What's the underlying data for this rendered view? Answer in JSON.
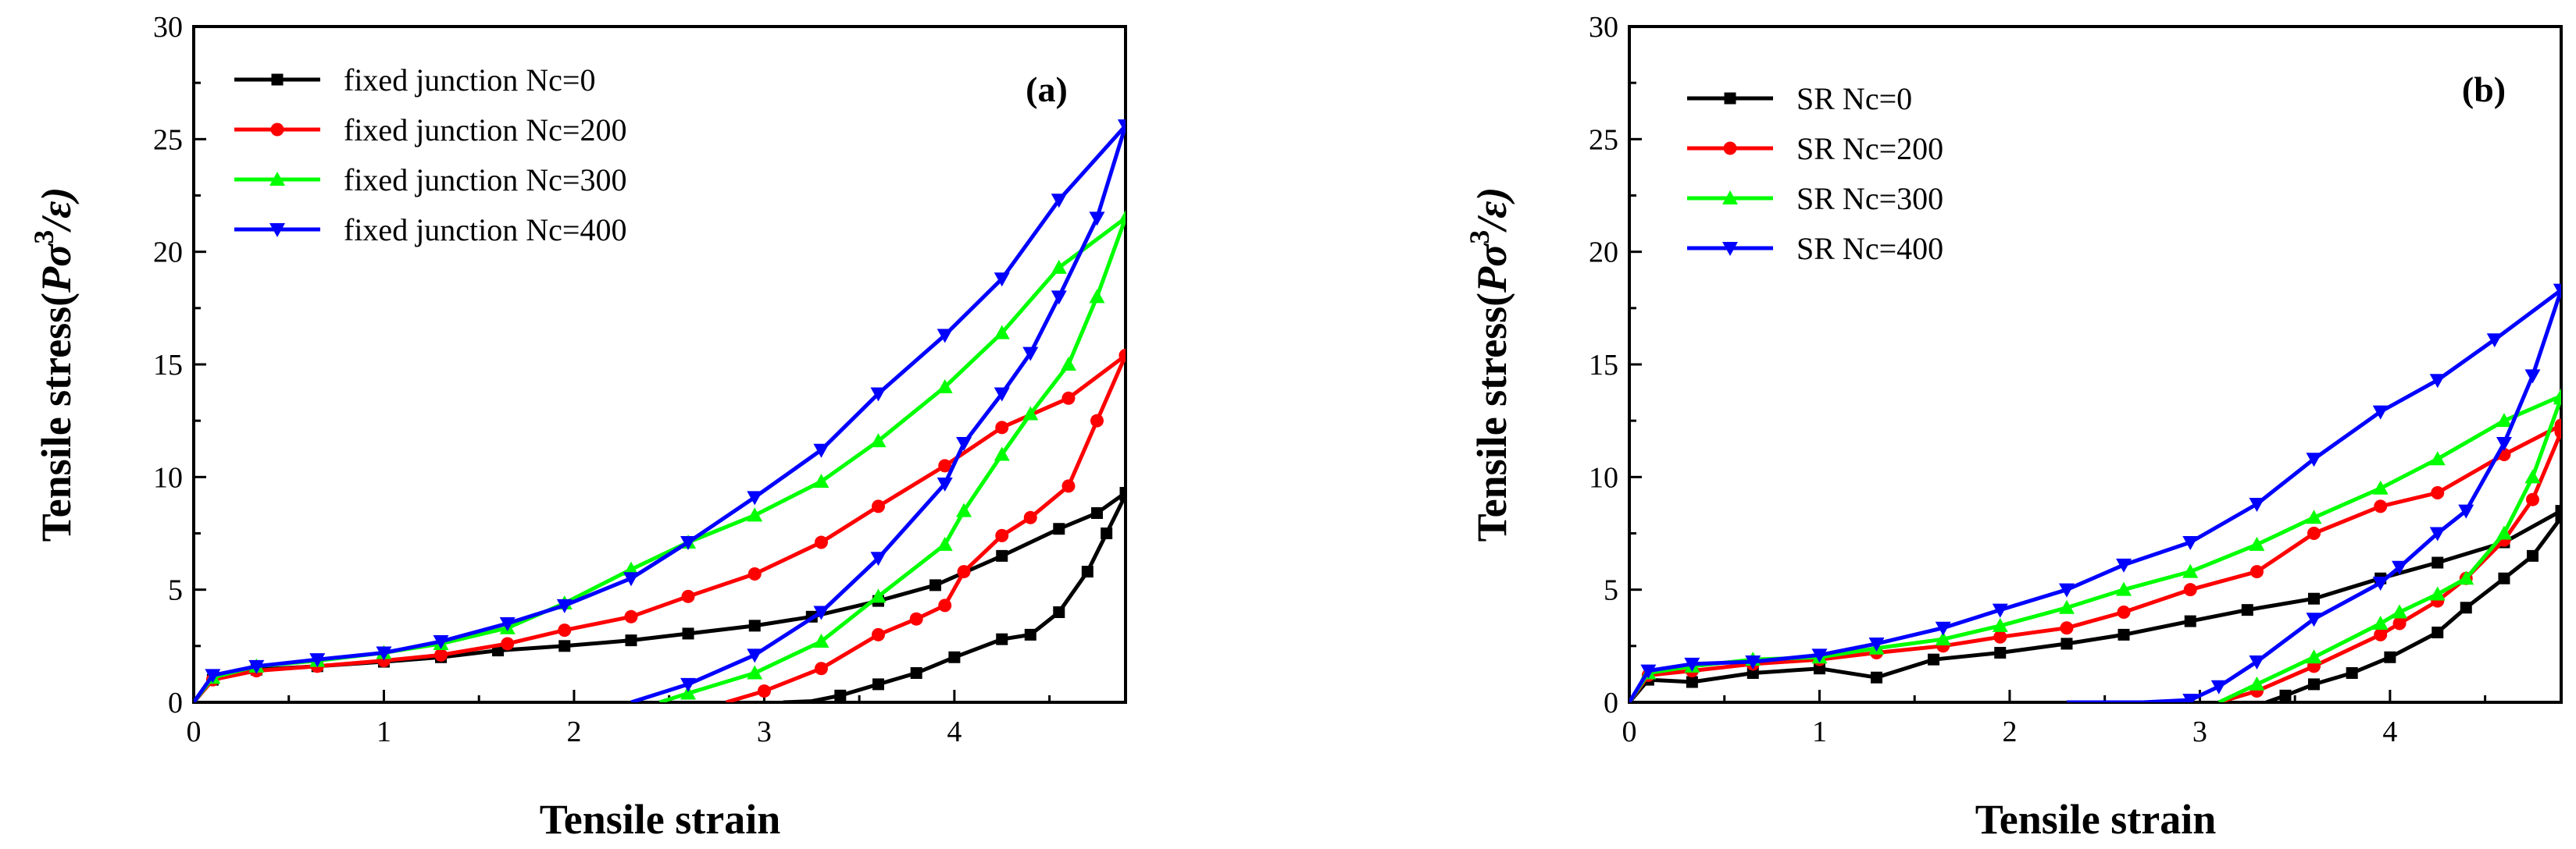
{
  "chart_data": [
    {
      "type": "line",
      "panel_label": "(a)",
      "xlabel": "Tensile strain",
      "ylabel_main": "Tensile stress(",
      "ylabel_p": "P",
      "ylabel_sigma": "σ",
      "ylabel_exp": "3",
      "ylabel_rest": "/ε)",
      "xlim": [
        0,
        4.9
      ],
      "ylim": [
        0,
        30
      ],
      "xticks": [
        0,
        1,
        2,
        3,
        4
      ],
      "yticks": [
        0,
        5,
        10,
        15,
        20,
        25,
        30
      ],
      "legend_position": "top-left",
      "series": [
        {
          "name": "fixed junction Nc=0",
          "color": "#000000",
          "marker": "square",
          "loading": [
            [
              0,
              0
            ],
            [
              0.1,
              1.0
            ],
            [
              0.33,
              1.45
            ],
            [
              0.65,
              1.6
            ],
            [
              1,
              1.8
            ],
            [
              1.3,
              2.0
            ],
            [
              1.6,
              2.3
            ],
            [
              1.95,
              2.5
            ],
            [
              2.3,
              2.75
            ],
            [
              2.6,
              3.05
            ],
            [
              2.95,
              3.4
            ],
            [
              3.25,
              3.8
            ],
            [
              3.6,
              4.5
            ],
            [
              3.9,
              5.2
            ],
            [
              4.25,
              6.5
            ],
            [
              4.55,
              7.7
            ],
            [
              4.75,
              8.4
            ],
            [
              4.9,
              9.3
            ]
          ],
          "unloading": [
            [
              4.9,
              9.2
            ],
            [
              4.8,
              7.5
            ],
            [
              4.7,
              5.8
            ],
            [
              4.55,
              4.0
            ],
            [
              4.4,
              3.0
            ],
            [
              4.25,
              2.8
            ],
            [
              4.0,
              2.0
            ],
            [
              3.8,
              1.3
            ],
            [
              3.6,
              0.8
            ],
            [
              3.4,
              0.3
            ],
            [
              3.25,
              0.05
            ],
            [
              3.1,
              0
            ]
          ]
        },
        {
          "name": "fixed junction Nc=200",
          "color": "#ff0000",
          "marker": "circle",
          "loading": [
            [
              0,
              0
            ],
            [
              0.1,
              1.0
            ],
            [
              0.33,
              1.4
            ],
            [
              0.65,
              1.6
            ],
            [
              1,
              1.85
            ],
            [
              1.3,
              2.1
            ],
            [
              1.65,
              2.6
            ],
            [
              1.95,
              3.2
            ],
            [
              2.3,
              3.8
            ],
            [
              2.6,
              4.7
            ],
            [
              2.95,
              5.7
            ],
            [
              3.3,
              7.1
            ],
            [
              3.6,
              8.7
            ],
            [
              3.95,
              10.5
            ],
            [
              4.25,
              12.2
            ],
            [
              4.6,
              13.5
            ],
            [
              4.9,
              15.4
            ]
          ],
          "unloading": [
            [
              4.9,
              15.4
            ],
            [
              4.75,
              12.5
            ],
            [
              4.6,
              9.6
            ],
            [
              4.4,
              8.2
            ],
            [
              4.25,
              7.4
            ],
            [
              4.05,
              5.8
            ],
            [
              3.95,
              4.3
            ],
            [
              3.8,
              3.7
            ],
            [
              3.6,
              3.0
            ],
            [
              3.3,
              1.5
            ],
            [
              3.0,
              0.5
            ],
            [
              2.8,
              0
            ]
          ]
        },
        {
          "name": "fixed junction Nc=300",
          "color": "#00ff00",
          "marker": "triangle-up",
          "loading": [
            [
              0,
              0
            ],
            [
              0.1,
              1.1
            ],
            [
              0.33,
              1.6
            ],
            [
              0.65,
              1.85
            ],
            [
              1,
              2.2
            ],
            [
              1.3,
              2.6
            ],
            [
              1.65,
              3.3
            ],
            [
              1.95,
              4.4
            ],
            [
              2.3,
              5.9
            ],
            [
              2.6,
              7.1
            ],
            [
              2.95,
              8.3
            ],
            [
              3.3,
              9.8
            ],
            [
              3.6,
              11.6
            ],
            [
              3.95,
              14.0
            ],
            [
              4.25,
              16.4
            ],
            [
              4.55,
              19.3
            ],
            [
              4.9,
              21.5
            ]
          ],
          "unloading": [
            [
              4.9,
              21.5
            ],
            [
              4.75,
              18.0
            ],
            [
              4.6,
              15.0
            ],
            [
              4.4,
              12.8
            ],
            [
              4.25,
              11.0
            ],
            [
              4.05,
              8.5
            ],
            [
              3.95,
              7.0
            ],
            [
              3.6,
              4.7
            ],
            [
              3.3,
              2.7
            ],
            [
              2.95,
              1.3
            ],
            [
              2.6,
              0.4
            ],
            [
              2.45,
              0
            ]
          ]
        },
        {
          "name": "fixed junction Nc=400",
          "color": "#0000ff",
          "marker": "triangle-down",
          "loading": [
            [
              0,
              0
            ],
            [
              0.1,
              1.2
            ],
            [
              0.33,
              1.6
            ],
            [
              0.65,
              1.9
            ],
            [
              1,
              2.2
            ],
            [
              1.3,
              2.7
            ],
            [
              1.65,
              3.5
            ],
            [
              1.95,
              4.3
            ],
            [
              2.3,
              5.5
            ],
            [
              2.6,
              7.1
            ],
            [
              2.95,
              9.1
            ],
            [
              3.3,
              11.2
            ],
            [
              3.6,
              13.7
            ],
            [
              3.95,
              16.3
            ],
            [
              4.25,
              18.8
            ],
            [
              4.55,
              22.3
            ],
            [
              4.9,
              25.6
            ]
          ],
          "unloading": [
            [
              4.9,
              25.6
            ],
            [
              4.75,
              21.5
            ],
            [
              4.55,
              18.0
            ],
            [
              4.4,
              15.5
            ],
            [
              4.25,
              13.7
            ],
            [
              4.05,
              11.5
            ],
            [
              3.95,
              9.7
            ],
            [
              3.6,
              6.4
            ],
            [
              3.3,
              4.0
            ],
            [
              2.95,
              2.1
            ],
            [
              2.6,
              0.8
            ],
            [
              2.3,
              0
            ]
          ]
        }
      ]
    },
    {
      "type": "line",
      "panel_label": "(b)",
      "xlabel": "Tensile strain",
      "ylabel_main": "Tensile stress(",
      "ylabel_p": "P",
      "ylabel_sigma": "σ",
      "ylabel_exp": "3",
      "ylabel_rest": "/ε)",
      "xlim": [
        0,
        4.9
      ],
      "ylim": [
        0,
        30
      ],
      "xticks": [
        0,
        1,
        2,
        3,
        4
      ],
      "yticks": [
        0,
        5,
        10,
        15,
        20,
        25,
        30
      ],
      "legend_position": "top-left",
      "series": [
        {
          "name": "SR Nc=0",
          "color": "#000000",
          "marker": "square",
          "loading": [
            [
              0,
              0
            ],
            [
              0.1,
              1.0
            ],
            [
              0.33,
              0.9
            ],
            [
              0.65,
              1.3
            ],
            [
              1,
              1.5
            ],
            [
              1.3,
              1.1
            ],
            [
              1.6,
              1.9
            ],
            [
              1.95,
              2.2
            ],
            [
              2.3,
              2.6
            ],
            [
              2.6,
              3.0
            ],
            [
              2.95,
              3.6
            ],
            [
              3.25,
              4.1
            ],
            [
              3.6,
              4.6
            ],
            [
              3.95,
              5.5
            ],
            [
              4.25,
              6.2
            ],
            [
              4.6,
              7.1
            ],
            [
              4.9,
              8.5
            ]
          ],
          "unloading": [
            [
              4.9,
              8.2
            ],
            [
              4.75,
              6.5
            ],
            [
              4.6,
              5.5
            ],
            [
              4.4,
              4.2
            ],
            [
              4.25,
              3.1
            ],
            [
              4.0,
              2.0
            ],
            [
              3.8,
              1.3
            ],
            [
              3.6,
              0.8
            ],
            [
              3.45,
              0.3
            ],
            [
              3.35,
              0
            ]
          ]
        },
        {
          "name": "SR Nc=200",
          "color": "#ff0000",
          "marker": "circle",
          "loading": [
            [
              0,
              0
            ],
            [
              0.1,
              1.2
            ],
            [
              0.33,
              1.4
            ],
            [
              0.65,
              1.7
            ],
            [
              1,
              1.9
            ],
            [
              1.3,
              2.2
            ],
            [
              1.65,
              2.5
            ],
            [
              1.95,
              2.9
            ],
            [
              2.3,
              3.3
            ],
            [
              2.6,
              4.0
            ],
            [
              2.95,
              5.0
            ],
            [
              3.3,
              5.8
            ],
            [
              3.6,
              7.5
            ],
            [
              3.95,
              8.7
            ],
            [
              4.25,
              9.3
            ],
            [
              4.6,
              11.0
            ],
            [
              4.9,
              12.3
            ]
          ],
          "unloading": [
            [
              4.9,
              12.0
            ],
            [
              4.75,
              9.0
            ],
            [
              4.6,
              7.2
            ],
            [
              4.4,
              5.5
            ],
            [
              4.25,
              4.5
            ],
            [
              4.05,
              3.5
            ],
            [
              3.95,
              3.0
            ],
            [
              3.6,
              1.6
            ],
            [
              3.3,
              0.5
            ],
            [
              3.1,
              0
            ]
          ]
        },
        {
          "name": "SR Nc=300",
          "color": "#00ff00",
          "marker": "triangle-up",
          "loading": [
            [
              0,
              0
            ],
            [
              0.1,
              1.3
            ],
            [
              0.33,
              1.6
            ],
            [
              0.65,
              1.9
            ],
            [
              1,
              2.0
            ],
            [
              1.3,
              2.4
            ],
            [
              1.65,
              2.8
            ],
            [
              1.95,
              3.4
            ],
            [
              2.3,
              4.2
            ],
            [
              2.6,
              5.0
            ],
            [
              2.95,
              5.8
            ],
            [
              3.3,
              7.0
            ],
            [
              3.6,
              8.2
            ],
            [
              3.95,
              9.5
            ],
            [
              4.25,
              10.8
            ],
            [
              4.6,
              12.5
            ],
            [
              4.9,
              13.6
            ]
          ],
          "unloading": [
            [
              4.9,
              13.5
            ],
            [
              4.75,
              10.0
            ],
            [
              4.6,
              7.5
            ],
            [
              4.4,
              5.5
            ],
            [
              4.25,
              4.8
            ],
            [
              4.05,
              4.0
            ],
            [
              3.95,
              3.5
            ],
            [
              3.6,
              2.0
            ],
            [
              3.3,
              0.8
            ],
            [
              3.1,
              0
            ]
          ]
        },
        {
          "name": "SR Nc=400",
          "color": "#0000ff",
          "marker": "triangle-down",
          "loading": [
            [
              0,
              0
            ],
            [
              0.1,
              1.4
            ],
            [
              0.33,
              1.7
            ],
            [
              0.65,
              1.8
            ],
            [
              1,
              2.1
            ],
            [
              1.3,
              2.6
            ],
            [
              1.65,
              3.3
            ],
            [
              1.95,
              4.1
            ],
            [
              2.3,
              5.0
            ],
            [
              2.6,
              6.1
            ],
            [
              2.95,
              7.1
            ],
            [
              3.3,
              8.8
            ],
            [
              3.6,
              10.8
            ],
            [
              3.95,
              12.9
            ],
            [
              4.25,
              14.3
            ],
            [
              4.55,
              16.1
            ],
            [
              4.9,
              18.3
            ]
          ],
          "unloading": [
            [
              4.9,
              18.3
            ],
            [
              4.75,
              14.5
            ],
            [
              4.6,
              11.5
            ],
            [
              4.4,
              8.5
            ],
            [
              4.25,
              7.5
            ],
            [
              4.05,
              6.0
            ],
            [
              3.95,
              5.3
            ],
            [
              3.6,
              3.7
            ],
            [
              3.3,
              1.8
            ],
            [
              3.1,
              0.7
            ],
            [
              2.95,
              0.1
            ],
            [
              2.7,
              0
            ],
            [
              2.3,
              0
            ]
          ]
        }
      ]
    }
  ]
}
